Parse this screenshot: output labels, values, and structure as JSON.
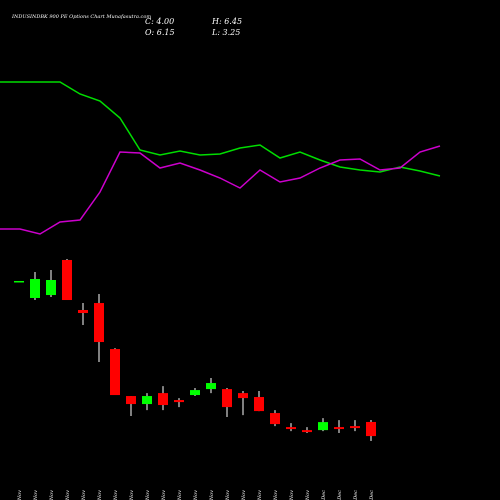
{
  "chart_data": {
    "type": "candlestick",
    "title": "INDUSINDBK 900 PE Options Chart Munafasutra.com",
    "ohlc_labels": [
      "C: 4.00",
      "H: 6.45",
      "O: 6.15",
      "L: 3.25"
    ],
    "categories": [
      "03 Nov",
      "04 Nov",
      "05 Nov",
      "07 Nov",
      "10 Nov",
      "11 Nov",
      "12 Nov",
      "13 Nov",
      "14 Nov",
      "17 Nov",
      "18 Nov",
      "19 Nov",
      "20 Nov",
      "21 Nov",
      "24 Nov",
      "25 Nov",
      "26 Nov",
      "27 Nov",
      "28 Nov",
      "01 Dec",
      "02 Dec",
      "03 Dec",
      "04 Dec"
    ],
    "open": [
      27.63,
      25.04,
      25.49,
      30.83,
      23.21,
      24.27,
      17.26,
      10.1,
      8.88,
      10.55,
      9.49,
      10.25,
      11.16,
      11.16,
      10.55,
      9.95,
      7.51,
      5.37,
      4.91,
      4.91,
      5.37,
      5.52,
      6.15
    ],
    "high": [
      27.63,
      29.0,
      29.3,
      30.98,
      24.27,
      25.65,
      17.41,
      10.1,
      10.55,
      11.62,
      9.79,
      11.32,
      12.84,
      11.32,
      10.86,
      10.86,
      7.96,
      5.98,
      5.37,
      6.74,
      6.44,
      6.44,
      6.45
    ],
    "low": [
      27.63,
      24.73,
      25.19,
      24.73,
      20.92,
      15.28,
      10.25,
      7.05,
      7.96,
      7.96,
      8.42,
      10.1,
      10.55,
      6.9,
      7.2,
      7.81,
      5.52,
      4.76,
      4.46,
      4.76,
      4.46,
      4.76,
      3.25
    ],
    "close": [
      27.63,
      27.93,
      27.78,
      24.73,
      22.75,
      18.33,
      10.25,
      8.88,
      10.1,
      8.73,
      9.18,
      11.01,
      12.08,
      8.42,
      9.79,
      7.81,
      5.83,
      5.07,
      4.61,
      6.13,
      5.07,
      5.22,
      4.0
    ],
    "up_color": "#00ff00",
    "down_color": "#ff0000",
    "lines": [
      {
        "color": "#00dd00",
        "values": [
          218,
          218,
          218,
          218,
          206,
          199,
          182,
          150,
          145,
          149,
          145,
          146,
          152,
          155,
          142,
          148,
          140,
          133,
          130,
          128,
          133,
          129,
          124
        ]
      },
      {
        "color": "#cc00cc",
        "values": [
          71,
          71,
          66,
          78,
          80,
          108,
          148,
          147,
          132,
          137,
          130,
          122,
          112,
          130,
          118,
          122,
          132,
          140,
          141,
          130,
          132,
          148,
          154
        ]
      }
    ]
  }
}
